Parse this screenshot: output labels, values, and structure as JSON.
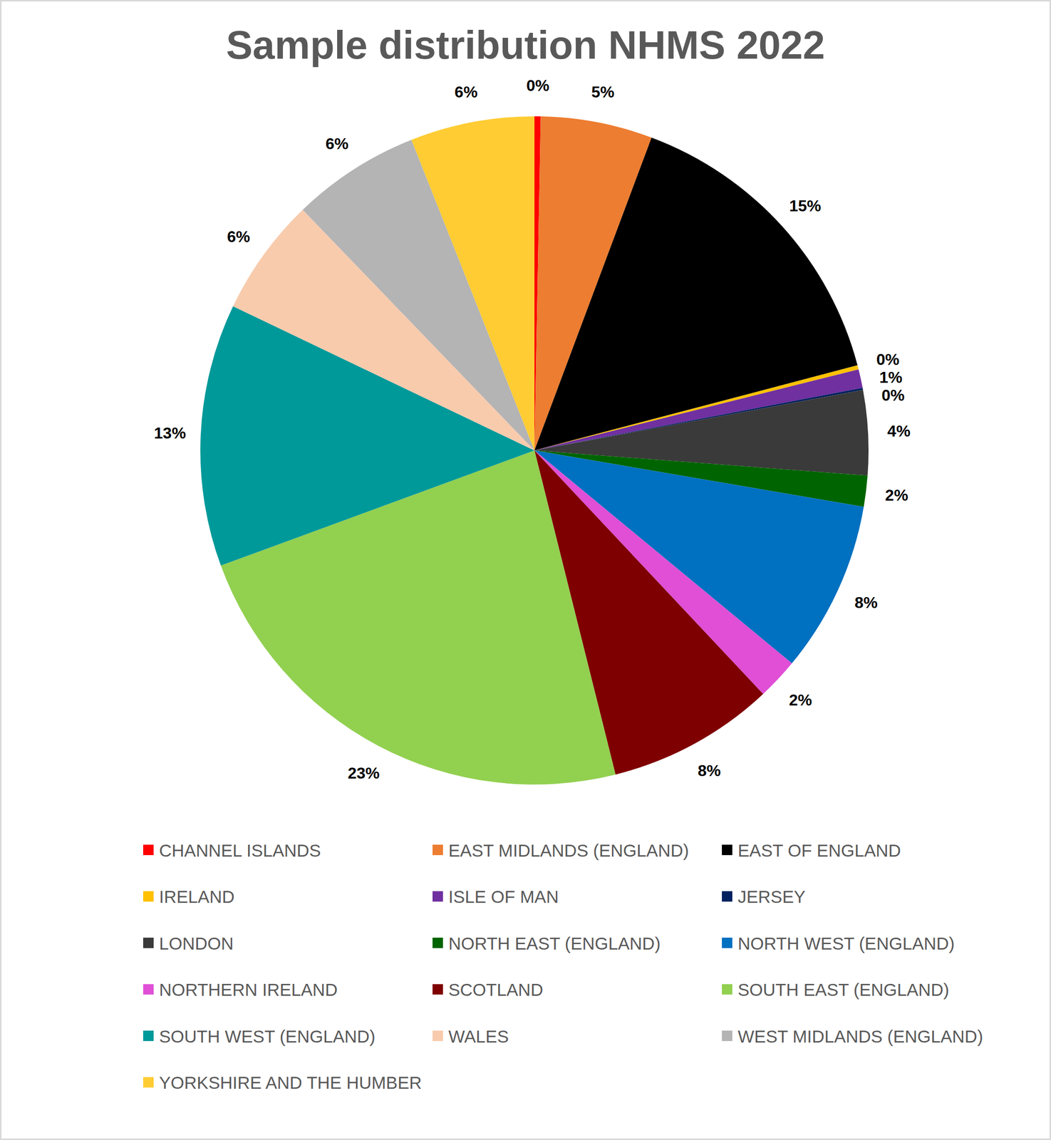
{
  "chart_data": {
    "type": "pie",
    "title": "Sample distribution NHMS 2022",
    "categories": [
      "CHANNEL ISLANDS",
      "EAST MIDLANDS (ENGLAND)",
      "EAST OF ENGLAND",
      "IRELAND",
      "ISLE OF MAN",
      "JERSEY",
      "LONDON",
      "NORTH EAST (ENGLAND)",
      "NORTH WEST (ENGLAND)",
      "NORTHERN IRELAND",
      "SCOTLAND",
      "SOUTH EAST (ENGLAND)",
      "SOUTH WEST (ENGLAND)",
      "WALES",
      "WEST MIDLANDS (ENGLAND)",
      "YORKSHIRE AND THE HUMBER"
    ],
    "values": [
      0.3,
      5.4,
      15.2,
      0.2,
      0.9,
      0.1,
      4.1,
      1.5,
      8.3,
      2.0,
      8.1,
      23.3,
      12.7,
      5.7,
      6.2,
      6.0
    ],
    "value_labels": [
      "0%",
      "5%",
      "15%",
      "0%",
      "1%",
      "0%",
      "4%",
      "2%",
      "8%",
      "2%",
      "8%",
      "23%",
      "13%",
      "6%",
      "6%",
      "6%"
    ],
    "colors": [
      "#ff0000",
      "#ed7d31",
      "#000000",
      "#ffc000",
      "#7030a0",
      "#002060",
      "#3a3a3a",
      "#006400",
      "#0070c0",
      "#e04fd6",
      "#7f0000",
      "#92d050",
      "#009999",
      "#f8cbad",
      "#b4b4b4",
      "#ffcc33"
    ],
    "data_labels": true,
    "legend": "bottom"
  }
}
